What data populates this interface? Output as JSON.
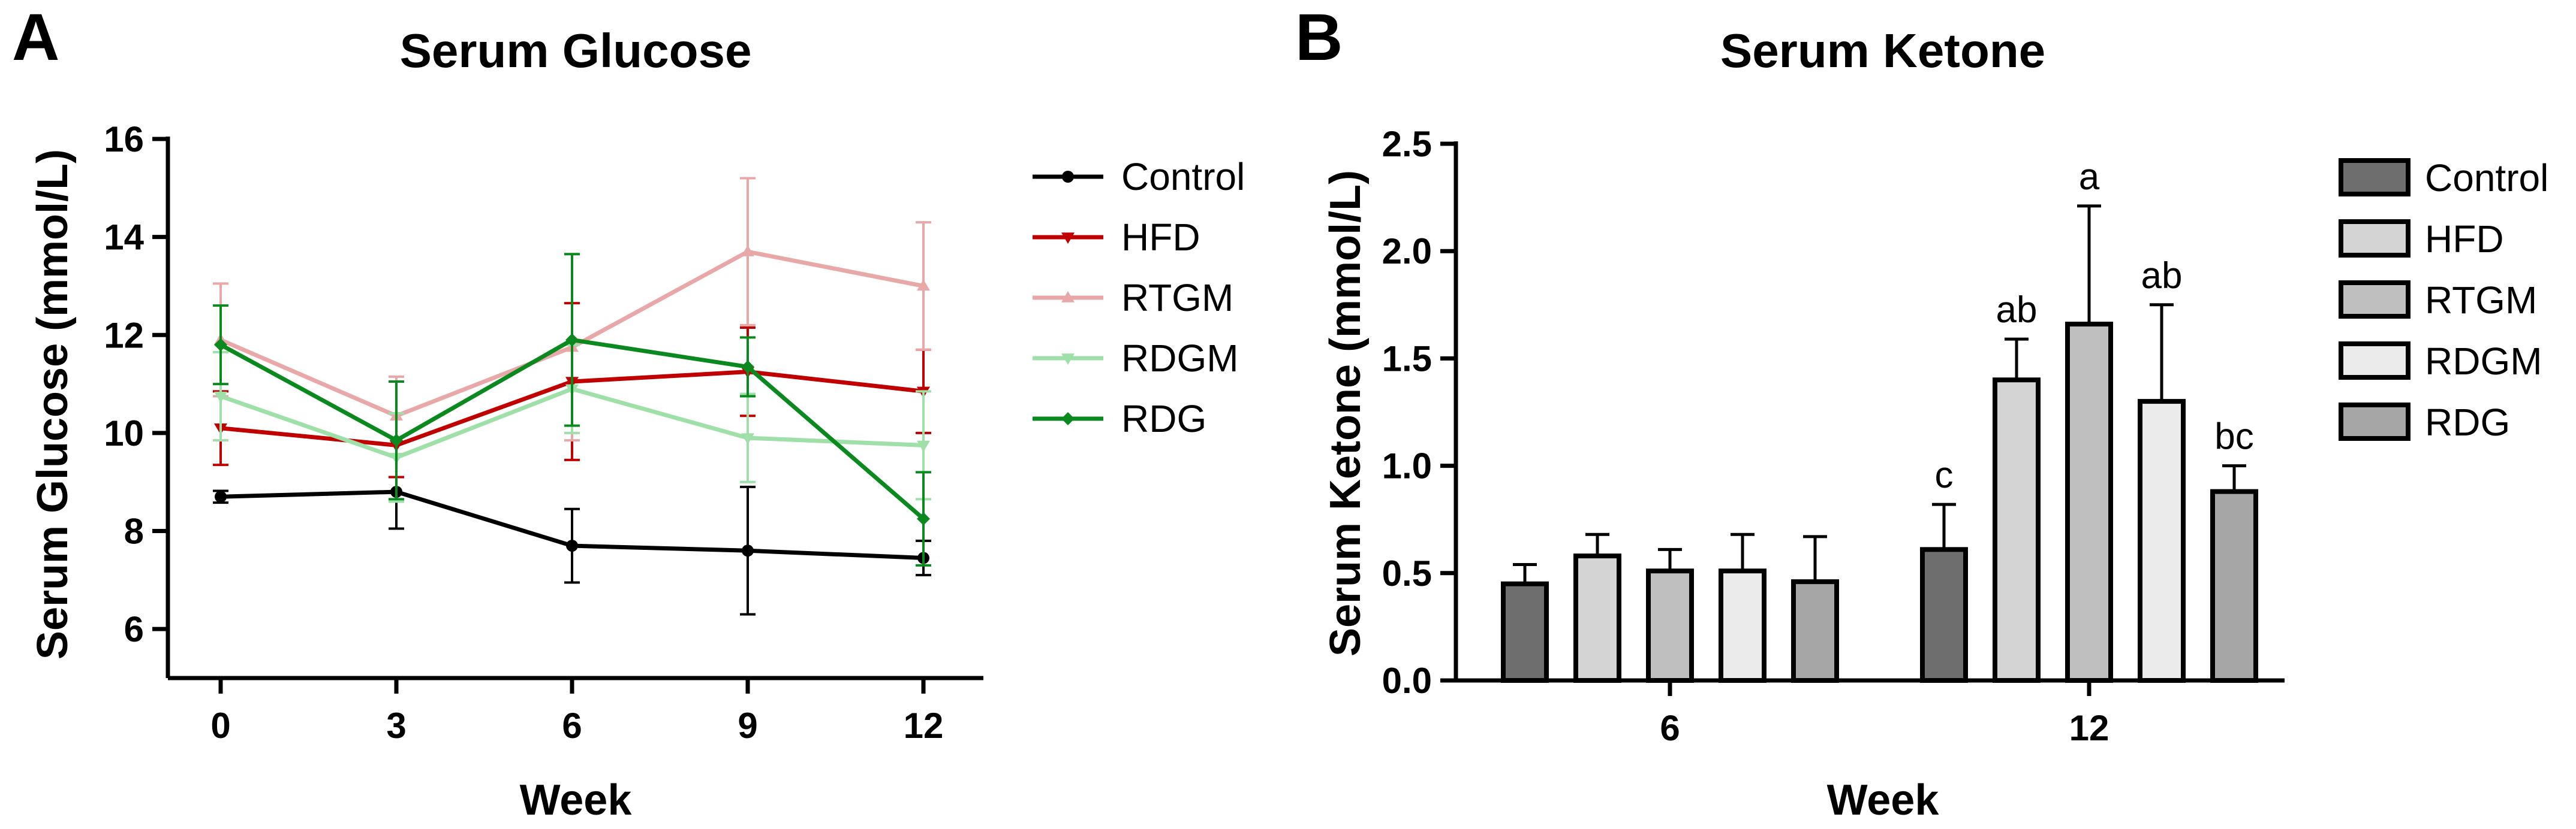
{
  "panels": {
    "a_letter": "A",
    "b_letter": "B"
  },
  "chart_data": [
    {
      "type": "line",
      "title": "Serum Glucose",
      "xlabel": "Week",
      "ylabel": "Serum Glucose (mmol/L)",
      "x": [
        0,
        3,
        6,
        9,
        12
      ],
      "x_tick_labels": [
        "0",
        "3",
        "6",
        "9",
        "12"
      ],
      "ylim": [
        5,
        16
      ],
      "y_ticks": [
        6,
        8,
        10,
        12,
        14,
        16
      ],
      "y_tick_labels": [
        "6",
        "8",
        "10",
        "12",
        "14",
        "16"
      ],
      "legend_position": "right",
      "series": [
        {
          "name": "Control",
          "color": "#000000",
          "marker": "circle",
          "values": [
            8.7,
            8.8,
            7.7,
            7.6,
            7.45
          ],
          "errors": [
            0.12,
            0.75,
            0.75,
            1.3,
            0.35
          ]
        },
        {
          "name": "HFD",
          "color": "#c00000",
          "marker": "triangle-down",
          "values": [
            10.1,
            9.75,
            11.05,
            11.25,
            10.85
          ],
          "errors": [
            0.75,
            0.65,
            1.6,
            0.9,
            0.85
          ]
        },
        {
          "name": "RTGM",
          "color": "#e8a8a8",
          "marker": "triangle-up",
          "values": [
            11.9,
            10.35,
            11.75,
            13.7,
            13.0
          ],
          "errors": [
            1.15,
            0.8,
            1.9,
            1.5,
            1.3
          ]
        },
        {
          "name": "RDGM",
          "color": "#9ee0a8",
          "marker": "triangle-down",
          "values": [
            10.75,
            9.5,
            10.9,
            9.9,
            9.75
          ],
          "errors": [
            0.9,
            0.9,
            0.9,
            0.9,
            1.1
          ]
        },
        {
          "name": "RDG",
          "color": "#0a8a1e",
          "marker": "diamond",
          "values": [
            11.8,
            9.85,
            11.9,
            11.35,
            8.25
          ],
          "errors": [
            0.8,
            1.2,
            1.75,
            0.6,
            0.95
          ]
        }
      ]
    },
    {
      "type": "bar",
      "title": "Serum Ketone",
      "xlabel": "Week",
      "ylabel": "Serum Ketone (mmol/L)",
      "categories": [
        "6",
        "12"
      ],
      "ylim": [
        0,
        2.5
      ],
      "y_ticks": [
        0,
        0.5,
        1.0,
        1.5,
        2.0,
        2.5
      ],
      "y_tick_labels": [
        "0.0",
        "0.5",
        "1.0",
        "1.5",
        "2.0",
        "2.5"
      ],
      "legend_position": "right",
      "series": [
        {
          "name": "Control",
          "color": "#6e6e6e",
          "values": [
            0.45,
            0.61
          ],
          "errors": [
            0.09,
            0.21
          ],
          "labels": [
            "",
            "c"
          ]
        },
        {
          "name": "HFD",
          "color": "#d4d4d4",
          "values": [
            0.58,
            1.4
          ],
          "errors": [
            0.1,
            0.19
          ],
          "labels": [
            "",
            "ab"
          ]
        },
        {
          "name": "RTGM",
          "color": "#bfbfbf",
          "values": [
            0.51,
            1.66
          ],
          "errors": [
            0.1,
            0.55
          ],
          "labels": [
            "",
            "a"
          ]
        },
        {
          "name": "RDGM",
          "color": "#ebebeb",
          "values": [
            0.51,
            1.3
          ],
          "errors": [
            0.17,
            0.45
          ],
          "labels": [
            "",
            "ab"
          ]
        },
        {
          "name": "RDG",
          "color": "#a6a6a6",
          "values": [
            0.46,
            0.88
          ],
          "errors": [
            0.21,
            0.12
          ],
          "labels": [
            "",
            "bc"
          ]
        }
      ]
    }
  ]
}
